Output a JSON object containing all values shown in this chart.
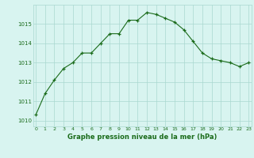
{
  "x": [
    0,
    1,
    2,
    3,
    4,
    5,
    6,
    7,
    8,
    9,
    10,
    11,
    12,
    13,
    14,
    15,
    16,
    17,
    18,
    19,
    20,
    21,
    22,
    23
  ],
  "y": [
    1010.3,
    1011.4,
    1012.1,
    1012.7,
    1013.0,
    1013.5,
    1013.5,
    1014.0,
    1014.5,
    1014.5,
    1015.2,
    1015.2,
    1015.6,
    1015.5,
    1015.3,
    1015.1,
    1014.7,
    1014.1,
    1013.5,
    1013.2,
    1013.1,
    1013.0,
    1012.8,
    1013.0
  ],
  "line_color": "#1a6b1a",
  "marker_color": "#1a6b1a",
  "bg_color": "#d8f4f0",
  "grid_color": "#aad8d0",
  "xlabel": "Graphe pression niveau de la mer (hPa)",
  "xlabel_color": "#1a6b1a",
  "yticks": [
    1010,
    1011,
    1012,
    1013,
    1014,
    1015
  ],
  "xticks": [
    0,
    1,
    2,
    3,
    4,
    5,
    6,
    7,
    8,
    9,
    10,
    11,
    12,
    13,
    14,
    15,
    16,
    17,
    18,
    19,
    20,
    21,
    22,
    23
  ],
  "ylim": [
    1009.7,
    1016.0
  ],
  "xlim": [
    -0.3,
    23.3
  ]
}
